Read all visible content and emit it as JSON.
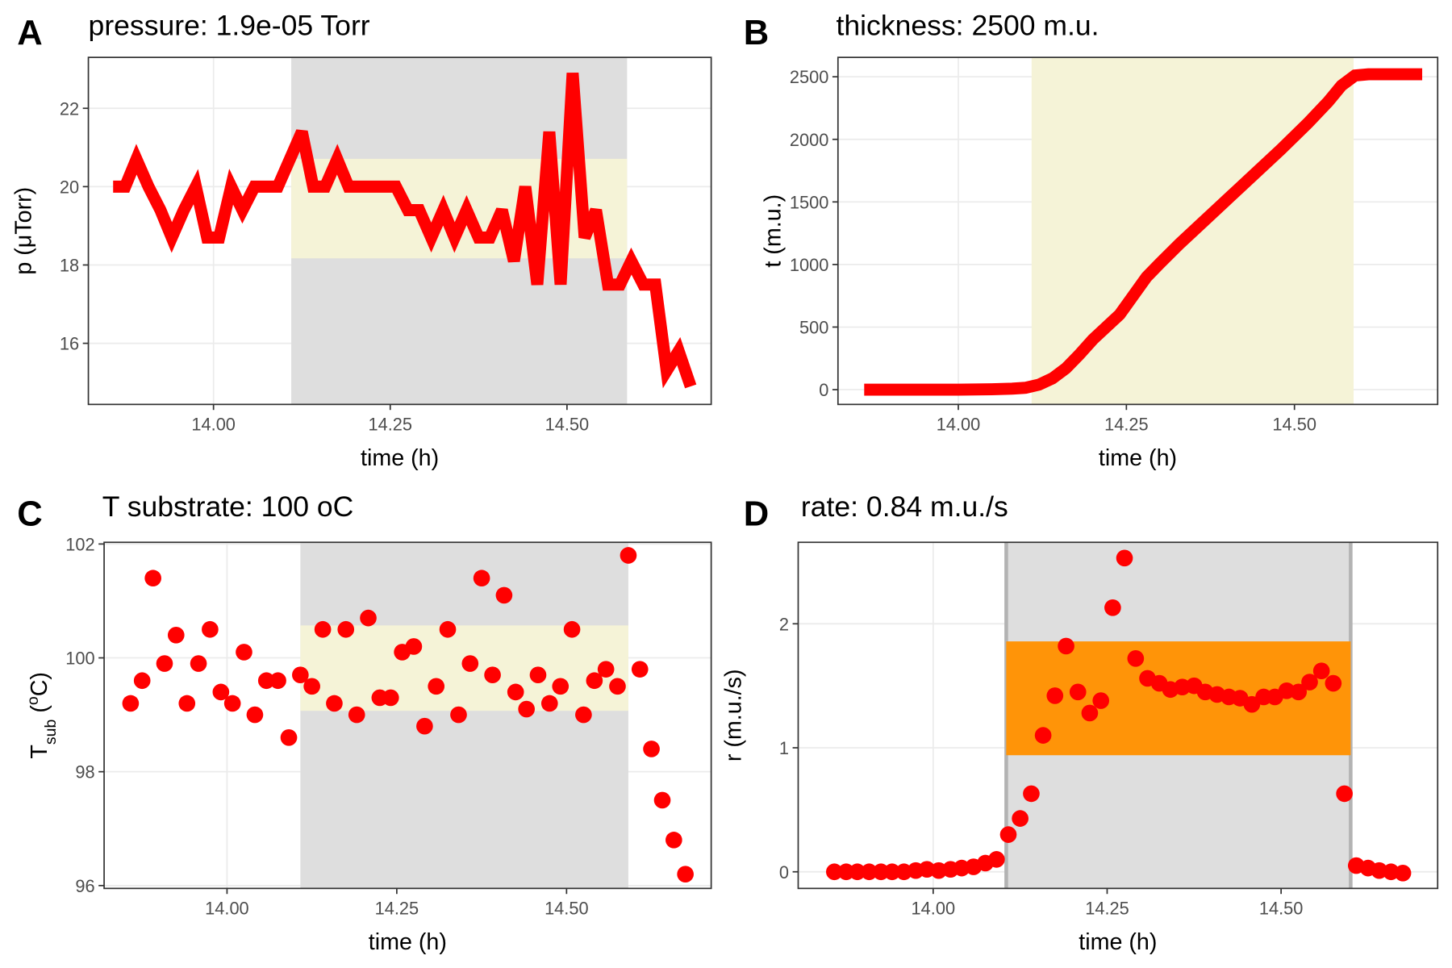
{
  "chart_data": [
    {
      "type": "line",
      "panel": "A",
      "title": "pressure: 1.9e-05 Torr",
      "x_label": "time (h)",
      "y_label": [
        {
          "text": "p (μTorr)"
        }
      ],
      "color": "#ff0000",
      "x": [
        13.858,
        13.875,
        13.891,
        13.908,
        13.925,
        13.941,
        13.958,
        13.975,
        13.991,
        14.008,
        14.025,
        14.041,
        14.058,
        14.075,
        14.091,
        14.108,
        14.125,
        14.141,
        14.158,
        14.175,
        14.191,
        14.208,
        14.225,
        14.241,
        14.258,
        14.275,
        14.291,
        14.308,
        14.325,
        14.341,
        14.358,
        14.375,
        14.391,
        14.408,
        14.425,
        14.441,
        14.458,
        14.475,
        14.491,
        14.508,
        14.525,
        14.541,
        14.558,
        14.575,
        14.591,
        14.608,
        14.625,
        14.641,
        14.658,
        14.675
      ],
      "values": [
        20,
        20,
        20.7,
        20,
        19.4,
        18.7,
        19.4,
        20,
        18.7,
        18.7,
        20,
        19.4,
        20,
        20,
        20,
        20.7,
        21.4,
        20,
        20,
        20.7,
        20,
        20,
        20,
        20,
        20,
        19.4,
        19.4,
        18.7,
        19.4,
        18.7,
        19.4,
        18.7,
        18.7,
        19.4,
        18.1,
        20,
        17.5,
        21.4,
        17.5,
        22.9,
        18.7,
        19.4,
        17.5,
        17.5,
        18.1,
        17.5,
        17.5,
        15.3,
        15.8,
        14.9
      ],
      "xlim": [
        13.823,
        14.704
      ],
      "ylim": [
        14.44,
        23.3
      ],
      "xticks": [
        {
          "value": 14,
          "label": "14.00"
        },
        {
          "value": 14.25,
          "label": "14.25"
        },
        {
          "value": 14.5,
          "label": "14.50"
        }
      ],
      "yticks": [
        16,
        18,
        20,
        22
      ],
      "highlight": {
        "x": [
          14.11,
          14.585
        ],
        "color": "#dedede"
      },
      "band": {
        "y": [
          18.17,
          20.71
        ],
        "color": "#f5f3d7"
      }
    },
    {
      "type": "line",
      "panel": "B",
      "title": "thickness: 2500 m.u.",
      "x_label": "time (h)",
      "y_label": [
        {
          "text": "t (m.u.)"
        }
      ],
      "color": "#ff0000",
      "x": [
        13.86,
        14.0,
        14.05,
        14.08,
        14.1,
        14.12,
        14.14,
        14.16,
        14.18,
        14.2,
        14.22,
        14.24,
        14.26,
        14.28,
        14.3,
        14.33,
        14.36,
        14.4,
        14.44,
        14.48,
        14.52,
        14.55,
        14.57,
        14.59,
        14.61,
        14.69
      ],
      "values": [
        0,
        0,
        3,
        8,
        15,
        40,
        90,
        170,
        280,
        400,
        500,
        600,
        750,
        900,
        1010,
        1170,
        1320,
        1520,
        1720,
        1920,
        2130,
        2300,
        2430,
        2510,
        2520,
        2520
      ],
      "xlim": [
        13.821,
        14.713
      ],
      "ylim": [
        -118,
        2655
      ],
      "xticks": [
        {
          "value": 14,
          "label": "14.00"
        },
        {
          "value": 14.25,
          "label": "14.25"
        },
        {
          "value": 14.5,
          "label": "14.50"
        }
      ],
      "yticks": [
        0,
        500,
        1000,
        1500,
        2000,
        2500
      ],
      "highlight": {
        "x": [
          14.109,
          14.588
        ],
        "color": "#f5f3d7"
      }
    },
    {
      "type": "scatter",
      "panel": "C",
      "title": "T substrate: 100 oC",
      "x_label": "time (h)",
      "y_label": [
        {
          "text": "T"
        },
        {
          "text": "sub",
          "shift": "sub"
        },
        {
          "text": " ("
        },
        {
          "text": "o",
          "shift": "super"
        },
        {
          "text": "C)"
        }
      ],
      "color": "#ff0000",
      "x": [
        13.858,
        13.875,
        13.891,
        13.908,
        13.925,
        13.941,
        13.958,
        13.975,
        13.991,
        14.008,
        14.025,
        14.041,
        14.058,
        14.075,
        14.091,
        14.108,
        14.125,
        14.141,
        14.158,
        14.175,
        14.191,
        14.208,
        14.225,
        14.241,
        14.258,
        14.275,
        14.291,
        14.308,
        14.325,
        14.341,
        14.358,
        14.375,
        14.391,
        14.408,
        14.425,
        14.441,
        14.458,
        14.475,
        14.491,
        14.508,
        14.525,
        14.541,
        14.558,
        14.575,
        14.591,
        14.608,
        14.625,
        14.641,
        14.658,
        14.675
      ],
      "values": [
        99.2,
        99.6,
        101.4,
        99.9,
        100.4,
        99.2,
        99.9,
        100.5,
        99.4,
        99.2,
        100.1,
        99.0,
        99.6,
        99.6,
        98.6,
        99.7,
        99.5,
        100.5,
        99.2,
        100.5,
        99.0,
        100.7,
        99.3,
        99.3,
        100.1,
        100.2,
        98.8,
        99.5,
        100.5,
        99.0,
        99.9,
        101.4,
        99.7,
        101.1,
        99.4,
        99.1,
        99.7,
        99.2,
        99.5,
        100.5,
        99.0,
        99.6,
        99.8,
        99.5,
        101.8,
        99.8,
        98.4,
        97.5,
        96.8,
        96.2
      ],
      "xlim": [
        13.819,
        14.713
      ],
      "ylim": [
        95.95,
        102.03
      ],
      "xticks": [
        {
          "value": 14,
          "label": "14.00"
        },
        {
          "value": 14.25,
          "label": "14.25"
        },
        {
          "value": 14.5,
          "label": "14.50"
        }
      ],
      "yticks": [
        96,
        98,
        100,
        102
      ],
      "highlight": {
        "x": [
          14.108,
          14.591
        ],
        "color": "#dedede"
      },
      "band": {
        "y": [
          99.07,
          100.57
        ],
        "color": "#f5f3d7"
      }
    },
    {
      "type": "scatter",
      "panel": "D",
      "title": "rate: 0.84 m.u./s",
      "x_label": "time (h)",
      "y_label": [
        {
          "text": "r (m.u./s)"
        }
      ],
      "color": "#ff0000",
      "x": [
        13.858,
        13.875,
        13.891,
        13.908,
        13.925,
        13.941,
        13.958,
        13.975,
        13.991,
        14.008,
        14.025,
        14.041,
        14.058,
        14.075,
        14.091,
        14.108,
        14.125,
        14.141,
        14.158,
        14.175,
        14.191,
        14.208,
        14.225,
        14.241,
        14.258,
        14.275,
        14.291,
        14.308,
        14.325,
        14.341,
        14.358,
        14.375,
        14.391,
        14.408,
        14.425,
        14.441,
        14.458,
        14.475,
        14.491,
        14.508,
        14.525,
        14.541,
        14.558,
        14.575,
        14.591,
        14.608,
        14.625,
        14.641,
        14.658,
        14.675
      ],
      "values": [
        0,
        0,
        0,
        0,
        0,
        0,
        0,
        0.01,
        0.02,
        0.01,
        0.02,
        0.03,
        0.04,
        0.07,
        0.1,
        0.3,
        0.43,
        0.63,
        1.1,
        1.42,
        1.82,
        1.45,
        1.28,
        1.38,
        2.13,
        2.53,
        1.72,
        1.56,
        1.52,
        1.47,
        1.49,
        1.5,
        1.45,
        1.43,
        1.41,
        1.4,
        1.35,
        1.41,
        1.41,
        1.46,
        1.45,
        1.53,
        1.62,
        1.52,
        0.63,
        0.05,
        0.03,
        0.01,
        0,
        -0.01
      ],
      "xlim": [
        13.806,
        14.725
      ],
      "ylim": [
        -0.134,
        2.657
      ],
      "xticks": [
        {
          "value": 14,
          "label": "14.00"
        },
        {
          "value": 14.25,
          "label": "14.25"
        },
        {
          "value": 14.5,
          "label": "14.50"
        }
      ],
      "yticks": [
        0,
        1,
        2
      ],
      "highlight": {
        "x": [
          14.105,
          14.6
        ],
        "color": "#dedede",
        "edge_color": "#b3b3b3"
      },
      "band": {
        "y": [
          0.94,
          1.858
        ],
        "color": "#ff9408"
      }
    }
  ]
}
